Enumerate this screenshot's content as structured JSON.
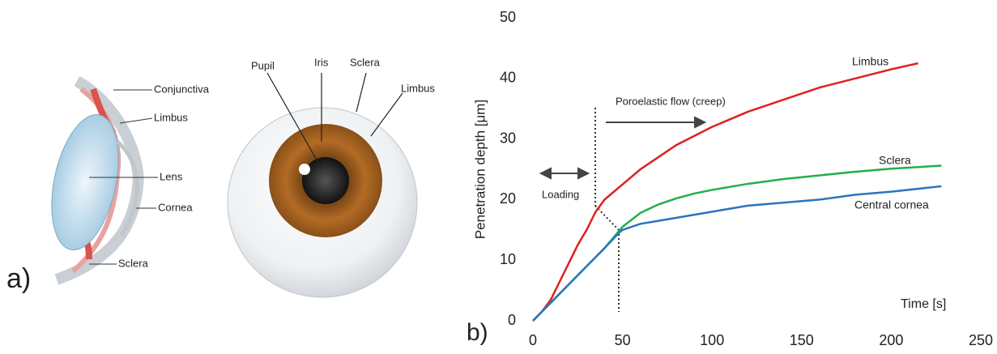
{
  "figure": {
    "panel_a_label": "a)",
    "cross_section_labels": [
      "Conjunctiva",
      "Limbus",
      "Lens",
      "Cornea",
      "Sclera"
    ],
    "front_view_labels": [
      "Pupil",
      "Iris",
      "Sclera",
      "Limbus"
    ]
  },
  "chart_data": {
    "type": "line",
    "panel_label": "b)",
    "x_label": "Time [s]",
    "y_label": "Penetration depth [μm]",
    "annotations": [
      "Poroelastic flow (creep)",
      "Loading"
    ],
    "xlim": [
      0,
      250
    ],
    "xticks": [
      0,
      50,
      100,
      150,
      200,
      250
    ],
    "ylim": [
      0,
      50
    ],
    "yticks": [
      0,
      10,
      20,
      30,
      40,
      50
    ],
    "grid": false,
    "series": [
      {
        "name": "Limbus",
        "color": "#e0201e",
        "x": [
          0,
          5,
          10,
          15,
          20,
          25,
          30,
          35,
          40,
          50,
          60,
          70,
          80,
          90,
          100,
          120,
          140,
          160,
          180,
          200,
          215
        ],
        "values": [
          0,
          1.5,
          3.5,
          6.5,
          9.5,
          12.5,
          15,
          18,
          20,
          22.5,
          25,
          27,
          29,
          30.5,
          32,
          34.5,
          36.5,
          38.5,
          40,
          41.5,
          42.5
        ]
      },
      {
        "name": "Sclera",
        "color": "#1fb04c",
        "x": [
          0,
          5,
          10,
          20,
          30,
          40,
          48,
          50,
          60,
          70,
          80,
          90,
          100,
          120,
          140,
          160,
          180,
          200,
          228
        ],
        "values": [
          0,
          1.5,
          3,
          6,
          9,
          12,
          14.8,
          15.5,
          17.8,
          19.2,
          20.2,
          21,
          21.6,
          22.6,
          23.4,
          24,
          24.6,
          25.1,
          25.6
        ]
      },
      {
        "name": "Central cornea",
        "color": "#2b74c0",
        "x": [
          0,
          5,
          10,
          20,
          30,
          40,
          48,
          50,
          60,
          70,
          80,
          90,
          100,
          120,
          140,
          160,
          180,
          200,
          228
        ],
        "values": [
          0,
          1.5,
          3,
          6,
          9,
          12,
          14.5,
          15,
          16,
          16.5,
          17,
          17.5,
          18,
          19,
          19.5,
          20,
          20.8,
          21.3,
          22.2
        ]
      }
    ]
  }
}
